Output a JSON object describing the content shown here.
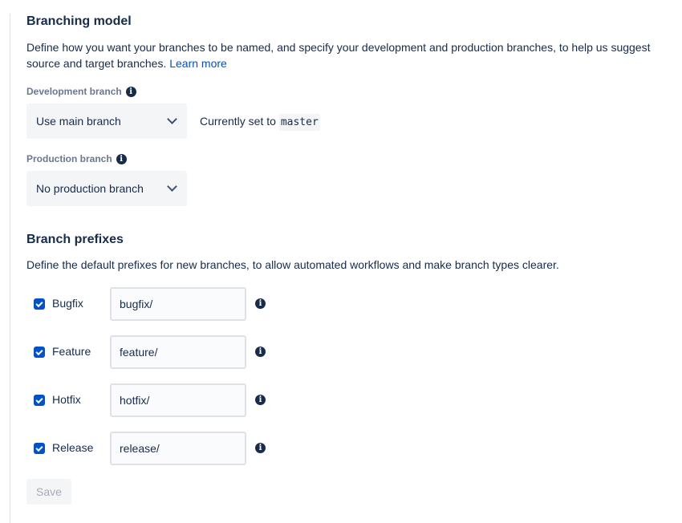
{
  "branching_model": {
    "title": "Branching model",
    "description": "Define how you want your branches to be named, and specify your development and production branches, to help us suggest source and target branches.",
    "learn_more": "Learn more",
    "development": {
      "label": "Development branch",
      "value": "Use main branch",
      "current_prefix": "Currently set to",
      "current_value": "master"
    },
    "production": {
      "label": "Production branch",
      "value": "No production branch"
    }
  },
  "branch_prefixes": {
    "title": "Branch prefixes",
    "description": "Define the default prefixes for new branches, to allow automated workflows and make branch types clearer.",
    "items": [
      {
        "label": "Bugfix",
        "value": "bugfix/",
        "checked": true
      },
      {
        "label": "Feature",
        "value": "feature/",
        "checked": true
      },
      {
        "label": "Hotfix",
        "value": "hotfix/",
        "checked": true
      },
      {
        "label": "Release",
        "value": "release/",
        "checked": true
      }
    ]
  },
  "save_label": "Save",
  "colors": {
    "accent": "#0052cc",
    "text": "#172b4d"
  }
}
